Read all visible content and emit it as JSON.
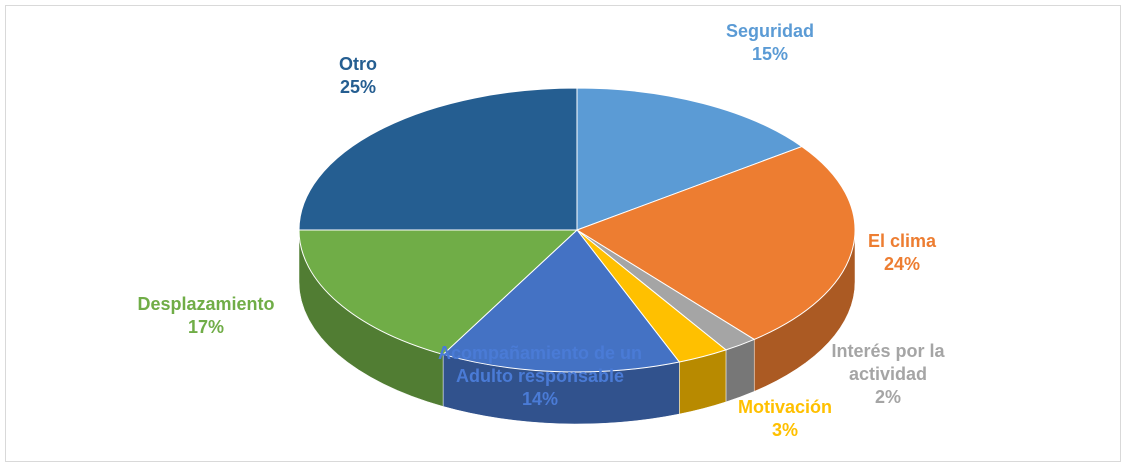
{
  "chart_data": {
    "type": "pie",
    "categories": [
      "Seguridad",
      "El clima",
      "Interés por la actividad",
      "Motivación",
      "Acompañamiento de un Adulto responsable",
      "Desplazamiento",
      "Otro"
    ],
    "values": [
      15,
      24,
      2,
      3,
      14,
      17,
      25
    ],
    "value_labels": [
      "15%",
      "24%",
      "2%",
      "3%",
      "14%",
      "17%",
      "25%"
    ],
    "colors": [
      "#5b9bd5",
      "#ed7d31",
      "#a5a5a5",
      "#ffc000",
      "#4472c4",
      "#70ad47",
      "#255e91"
    ]
  }
}
